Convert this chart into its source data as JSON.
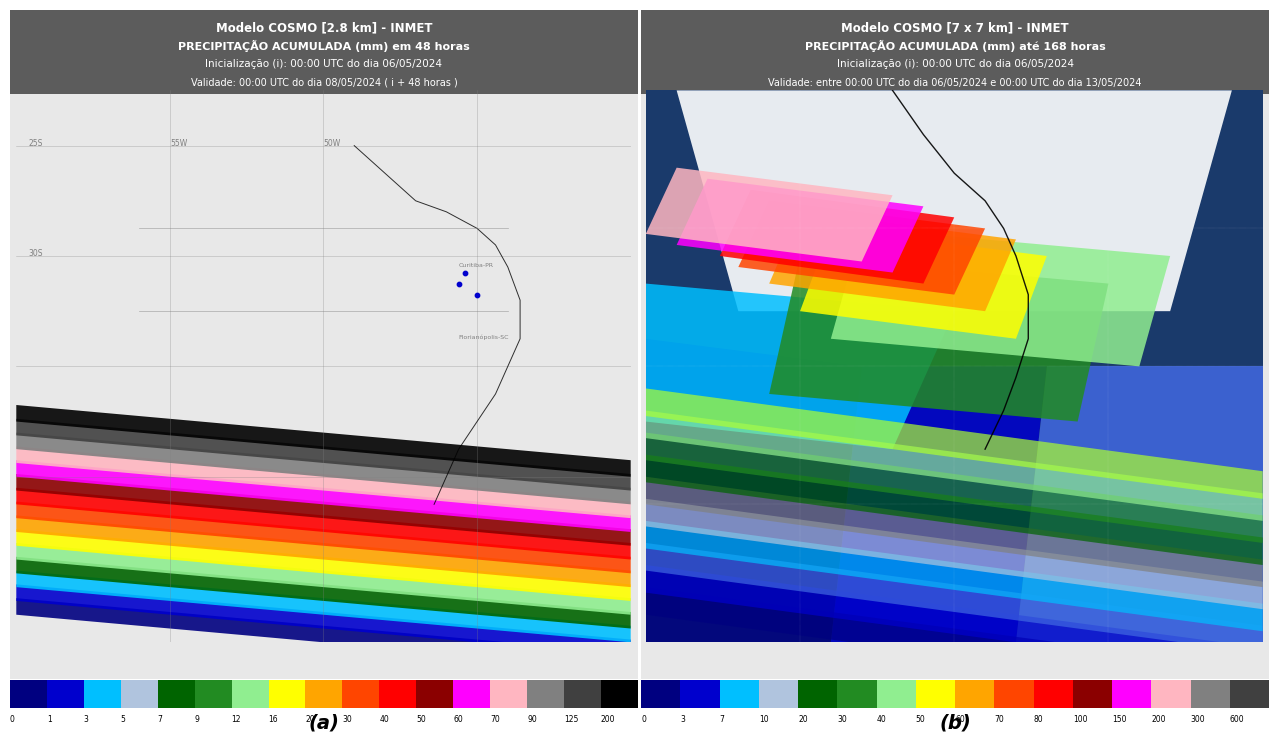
{
  "panel_a": {
    "title_line1": "Modelo COSMO [2.8 km] - INMET",
    "title_line2": "PRECIPITAÇÃO ACUMULADA (mm) em 48 horas",
    "title_line3": "Inicialização (i): 00:00 UTC do dia 06/05/2024",
    "title_line4": "Validade: 00:00 UTC do dia 08/05/2024 ( i + 48 horas )",
    "label": "(a)",
    "colorbar_values": [
      0,
      1,
      3,
      5,
      7,
      9,
      12,
      16,
      20,
      30,
      40,
      50,
      60,
      70,
      90,
      125,
      200
    ],
    "colorbar_colors": [
      "#000080",
      "#0000cd",
      "#00bfff",
      "#b0c4de",
      "#006400",
      "#228b22",
      "#90ee90",
      "#ffff00",
      "#ffa500",
      "#ff4500",
      "#ff0000",
      "#8b0000",
      "#ff00ff",
      "#ffb6c1",
      "#808080",
      "#404040",
      "#000000"
    ],
    "bg_color": "#7a7a7a"
  },
  "panel_b": {
    "title_line1": "Modelo COSMO [7 x 7 km] - INMET",
    "title_line2": "PRECIPITAÇÃO ACUMULADA (mm) até 168 horas",
    "title_line3": "Inicialização (i): 00:00 UTC do dia 06/05/2024",
    "title_line4": "Validade: entre 00:00 UTC do dia 06/05/2024 e 00:00 UTC do dia 13/05/2024",
    "label": "(b)",
    "colorbar_values": [
      0,
      3,
      7,
      10,
      20,
      30,
      40,
      50,
      60,
      70,
      80,
      100,
      150,
      200,
      300,
      600
    ],
    "colorbar_colors": [
      "#000080",
      "#0000cd",
      "#00bfff",
      "#b0c4de",
      "#006400",
      "#228b22",
      "#90ee90",
      "#ffff00",
      "#ffa500",
      "#ff4500",
      "#ff0000",
      "#8b0000",
      "#ff00ff",
      "#ffb6c1",
      "#808080",
      "#404040"
    ],
    "bg_color": "#7a7a7a"
  },
  "figure_bg": "#ffffff",
  "header_bg": "#5a5a5a",
  "map_bg_left": "#f0f0f0",
  "map_bg_right": "#f0f0f0"
}
